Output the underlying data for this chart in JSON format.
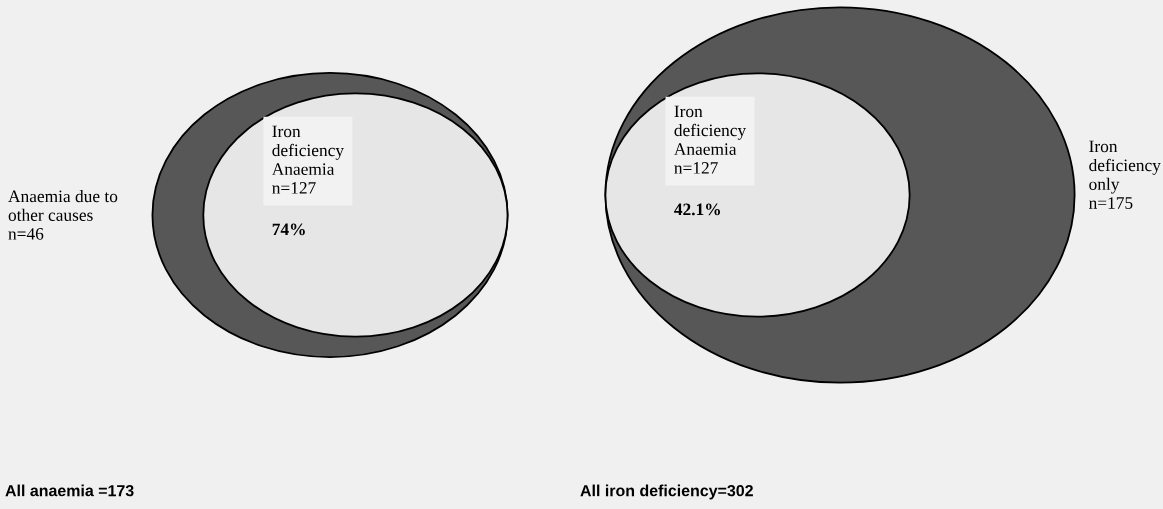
{
  "chart_data": [
    {
      "type": "other",
      "title": "All anaemia =173",
      "categories": [
        "Anaemia due to\nother causes",
        "Iron\ndeficiency\nAnaemia"
      ],
      "values": [
        46,
        127
      ],
      "value_labels": [
        "n=46",
        "n=127"
      ],
      "colors": [
        "#575757",
        "#e6e6e6"
      ],
      "annotations": [
        "74%"
      ]
    },
    {
      "type": "other",
      "title": "All iron deficiency=302",
      "categories": [
        "Iron\ndeficiency\nAnaemia",
        "Iron\ndeficiency\nonly"
      ],
      "values": [
        127,
        175
      ],
      "value_labels": [
        "n=127",
        "n=175"
      ],
      "colors": [
        "#e6e6e6",
        "#575757"
      ],
      "annotations": [
        "42.1%"
      ]
    }
  ]
}
